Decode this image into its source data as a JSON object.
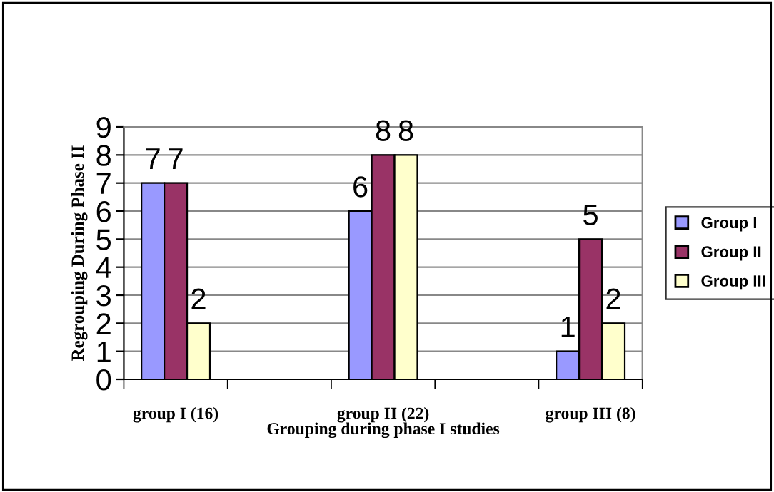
{
  "chart_data": {
    "type": "bar",
    "xlabel": "Grouping during phase I studies",
    "ylabel": "Regrouping During Phase II",
    "categories": [
      "group I (16)",
      null,
      "group II (22)",
      null,
      "group III (8)"
    ],
    "series": [
      {
        "name": "Group I",
        "color": "#9999ff",
        "values": [
          7,
          null,
          6,
          null,
          1
        ]
      },
      {
        "name": "Group II",
        "color": "#993366",
        "values": [
          7,
          null,
          8,
          null,
          5
        ]
      },
      {
        "name": "Group III",
        "color": "#ffffcc",
        "values": [
          2,
          null,
          8,
          null,
          2
        ]
      }
    ],
    "ylim": [
      0,
      9
    ],
    "yticks": [
      0,
      1,
      2,
      3,
      4,
      5,
      6,
      7,
      8,
      9
    ],
    "grid": "y",
    "legend": "right",
    "data_labels": true
  }
}
